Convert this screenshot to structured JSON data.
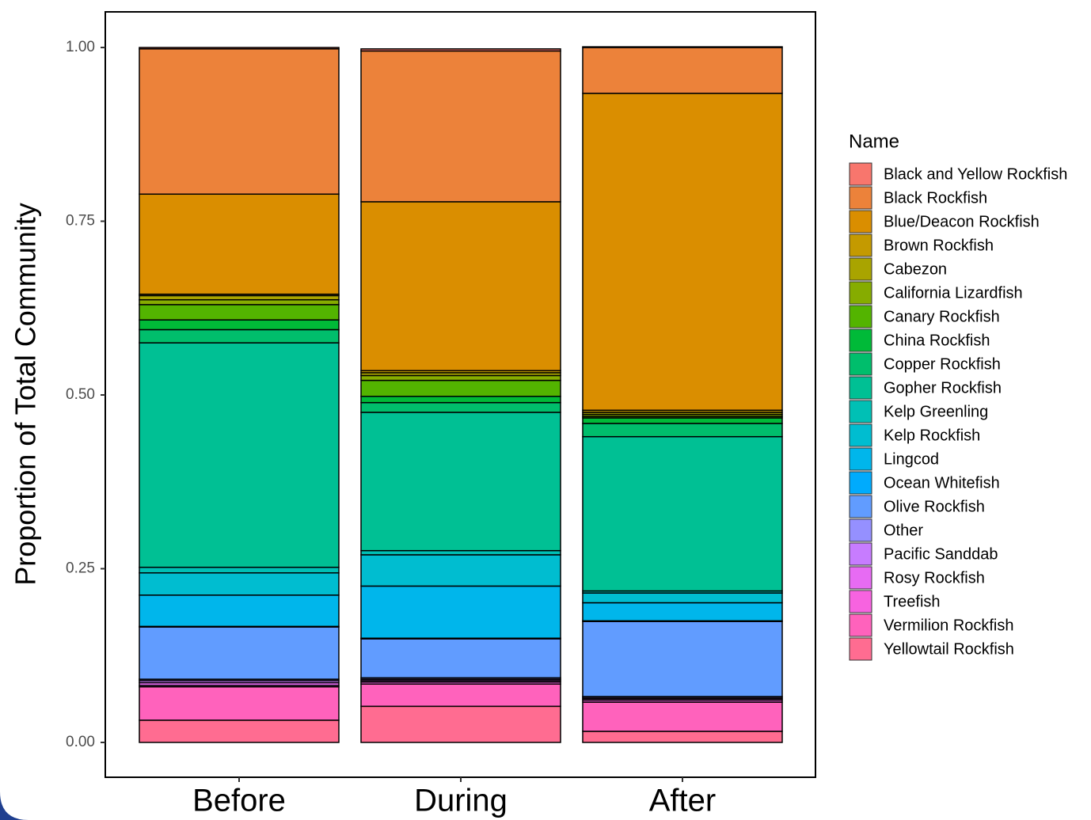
{
  "chart_data": {
    "type": "stacked_bar",
    "y_label": "Proportion of Total Community",
    "legend_title": "Name",
    "categories": [
      "Before",
      "During",
      "After"
    ],
    "ylim": [
      0,
      1
    ],
    "yticks": [
      {
        "value": 0,
        "label": "0.00"
      },
      {
        "value": 0.25,
        "label": "0.25"
      },
      {
        "value": 0.5,
        "label": "0.50"
      },
      {
        "value": 0.75,
        "label": "0.75"
      },
      {
        "value": 1,
        "label": "1.00"
      }
    ],
    "series": [
      {
        "name": "Black and Yellow Rockfish",
        "color": "#F8766D",
        "values": [
          0.002,
          0.003,
          0.001
        ]
      },
      {
        "name": "Black Rockfish",
        "color": "#EC823A",
        "values": [
          0.209,
          0.217,
          0.066
        ]
      },
      {
        "name": "Blue/Deacon Rockfish",
        "color": "#DA8E00",
        "values": [
          0.144,
          0.243,
          0.456
        ]
      },
      {
        "name": "Brown Rockfish",
        "color": "#C49A00",
        "values": [
          0.002,
          0.003,
          0.003
        ]
      },
      {
        "name": "Cabezon",
        "color": "#A9A400",
        "values": [
          0.006,
          0.004,
          0.003
        ]
      },
      {
        "name": "California Lizardfish",
        "color": "#86AC00",
        "values": [
          0.007,
          0.007,
          0.003
        ]
      },
      {
        "name": "Canary Rockfish",
        "color": "#53B400",
        "values": [
          0.022,
          0.023,
          0.002
        ]
      },
      {
        "name": "China Rockfish",
        "color": "#00BA38",
        "values": [
          0.014,
          0.009,
          0.008
        ]
      },
      {
        "name": "Copper Rockfish",
        "color": "#00BE6C",
        "values": [
          0.019,
          0.014,
          0.019
        ]
      },
      {
        "name": "Gopher Rockfish",
        "color": "#00C094",
        "values": [
          0.323,
          0.199,
          0.222
        ]
      },
      {
        "name": "Kelp Greenling",
        "color": "#00C0B5",
        "values": [
          0.008,
          0.006,
          0.003
        ]
      },
      {
        "name": "Kelp Rockfish",
        "color": "#00BDD0",
        "values": [
          0.032,
          0.045,
          0.014
        ]
      },
      {
        "name": "Lingcod",
        "color": "#00B6EB",
        "values": [
          0.045,
          0.075,
          0.026
        ]
      },
      {
        "name": "Ocean Whitefish",
        "color": "#00ABFD",
        "values": [
          0.001,
          0.001,
          0.001
        ]
      },
      {
        "name": "Olive Rockfish",
        "color": "#619CFF",
        "values": [
          0.075,
          0.056,
          0.108
        ]
      },
      {
        "name": "Other",
        "color": "#9590FF",
        "values": [
          0.002,
          0.002,
          0.001
        ]
      },
      {
        "name": "Pacific Sanddab",
        "color": "#C77CFF",
        "values": [
          0.003,
          0.002,
          0.002
        ]
      },
      {
        "name": "Rosy Rockfish",
        "color": "#E76BF3",
        "values": [
          0.004,
          0.002,
          0.002
        ]
      },
      {
        "name": "Treefish",
        "color": "#F763E0",
        "values": [
          0.002,
          0.003,
          0.003
        ]
      },
      {
        "name": "Vermilion Rockfish",
        "color": "#FF62BC",
        "values": [
          0.048,
          0.032,
          0.042
        ]
      },
      {
        "name": "Yellowtail Rockfish",
        "color": "#FF6C91",
        "values": [
          0.032,
          0.052,
          0.016
        ]
      }
    ]
  }
}
